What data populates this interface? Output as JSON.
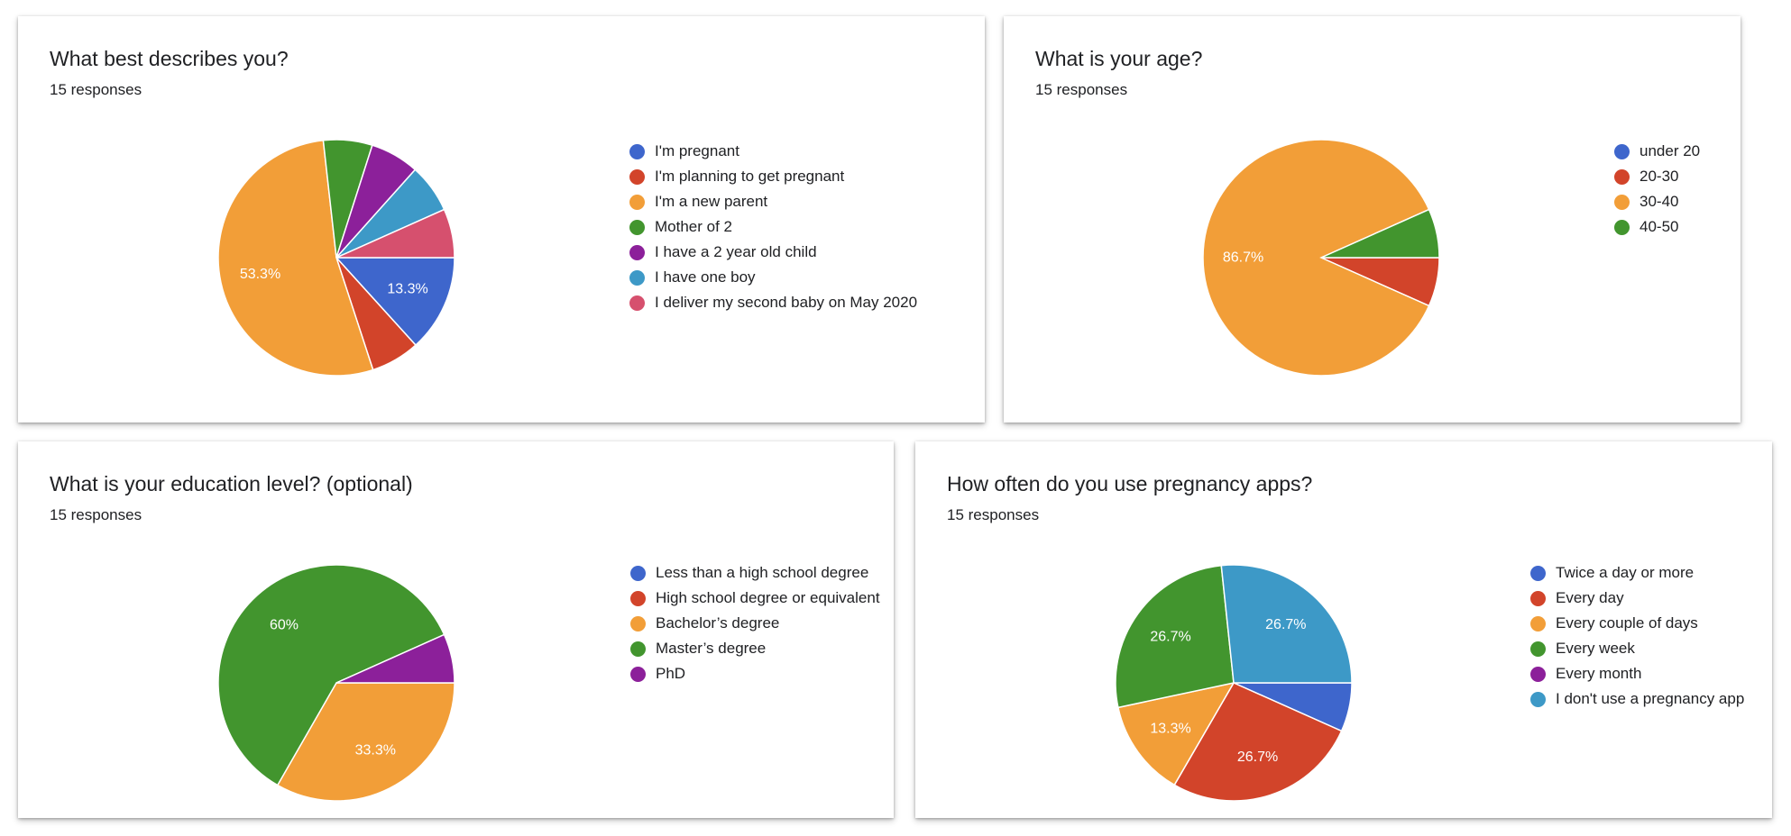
{
  "charts": [
    {
      "title": "What best describes you?",
      "subtitle": "15 responses",
      "chart_data": {
        "type": "pie",
        "title": "What best describes you?",
        "categories": [
          "I'm pregnant",
          "I'm planning to get pregnant",
          "I'm a new parent",
          "Mother of 2",
          "I have a 2 year old child",
          "I have one boy",
          "I deliver my second baby on May 2020"
        ],
        "values": [
          13.3,
          6.7,
          53.3,
          6.7,
          6.7,
          6.7,
          6.7
        ],
        "slice_labels": [
          "13.3%",
          "",
          "53.3%",
          "",
          "",
          "",
          ""
        ],
        "colors": [
          "#3e66cc",
          "#d2442a",
          "#f29e38",
          "#42952e",
          "#8c209a",
          "#3d99c7",
          "#d6506e"
        ],
        "legend": "right"
      }
    },
    {
      "title": "What is your age?",
      "subtitle": "15 responses",
      "chart_data": {
        "type": "pie",
        "title": "What is your age?",
        "categories": [
          "under 20",
          "20-30",
          "30-40",
          "40-50"
        ],
        "values": [
          0,
          6.7,
          86.7,
          6.7
        ],
        "slice_labels": [
          "",
          "",
          "86.7%",
          ""
        ],
        "colors": [
          "#3e66cc",
          "#d2442a",
          "#f29e38",
          "#42952e"
        ],
        "legend": "right"
      }
    },
    {
      "title": "What is your education level? (optional)",
      "subtitle": "15 responses",
      "chart_data": {
        "type": "pie",
        "title": "What is your education level? (optional)",
        "categories": [
          "Less than a high school degree",
          "High school degree or equivalent",
          "Bachelor’s degree",
          "Master’s degree",
          "PhD"
        ],
        "values": [
          0,
          0,
          33.3,
          60,
          6.7
        ],
        "slice_labels": [
          "",
          "",
          "33.3%",
          "60%",
          ""
        ],
        "colors": [
          "#3e66cc",
          "#d2442a",
          "#f29e38",
          "#42952e",
          "#8c209a"
        ],
        "legend": "right"
      }
    },
    {
      "title": "How often do you use pregnancy apps?",
      "subtitle": "15 responses",
      "chart_data": {
        "type": "pie",
        "title": "How often do you use pregnancy apps?",
        "categories": [
          "Twice a day or more",
          "Every day",
          "Every couple of days",
          "Every week",
          "Every month",
          "I don't use a pregnancy app"
        ],
        "values": [
          6.7,
          26.7,
          13.3,
          26.7,
          0,
          26.7
        ],
        "slice_labels": [
          "",
          "26.7%",
          "13.3%",
          "26.7%",
          "",
          "26.7%"
        ],
        "colors": [
          "#3e66cc",
          "#d2442a",
          "#f29e38",
          "#42952e",
          "#8c209a",
          "#3d99c7"
        ],
        "legend": "right"
      }
    }
  ]
}
